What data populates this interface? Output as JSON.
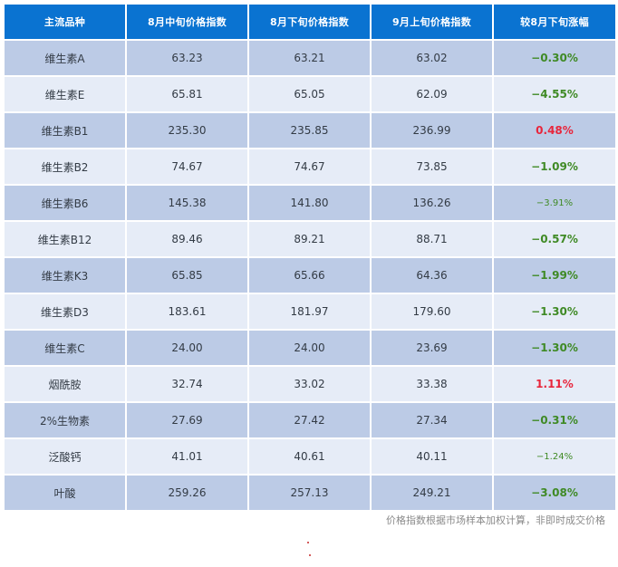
{
  "headers": [
    "主流品种",
    "8月中旬价格指数",
    "8月下旬价格指数",
    "9月上旬价格指数",
    "较8月下旬涨幅"
  ],
  "rows": [
    {
      "name": "维生素A",
      "mid_aug": "63.23",
      "late_aug": "63.21",
      "early_sep": "63.02",
      "change": "−0.30%",
      "dir": "down"
    },
    {
      "name": "维生素E",
      "mid_aug": "65.81",
      "late_aug": "65.05",
      "early_sep": "62.09",
      "change": "−4.55%",
      "dir": "down"
    },
    {
      "name": "维生素B1",
      "mid_aug": "235.30",
      "late_aug": "235.85",
      "early_sep": "236.99",
      "change": "0.48%",
      "dir": "up"
    },
    {
      "name": "维生素B2",
      "mid_aug": "74.67",
      "late_aug": "74.67",
      "early_sep": "73.85",
      "change": "−1.09%",
      "dir": "down"
    },
    {
      "name": "维生素B6",
      "mid_aug": "145.38",
      "late_aug": "141.80",
      "early_sep": "136.26",
      "change": "−3.91%",
      "dir": "down"
    },
    {
      "name": "维生素B12",
      "mid_aug": "89.46",
      "late_aug": "89.21",
      "early_sep": "88.71",
      "change": "−0.57%",
      "dir": "down"
    },
    {
      "name": "维生素K3",
      "mid_aug": "65.85",
      "late_aug": "65.66",
      "early_sep": "64.36",
      "change": "−1.99%",
      "dir": "down"
    },
    {
      "name": "维生素D3",
      "mid_aug": "183.61",
      "late_aug": "181.97",
      "early_sep": "179.60",
      "change": "−1.30%",
      "dir": "down"
    },
    {
      "name": "维生素C",
      "mid_aug": "24.00",
      "late_aug": "24.00",
      "early_sep": "23.69",
      "change": "−1.30%",
      "dir": "down"
    },
    {
      "name": "烟酰胺",
      "mid_aug": "32.74",
      "late_aug": "33.02",
      "early_sep": "33.38",
      "change": "1.11%",
      "dir": "up"
    },
    {
      "name": "2%生物素",
      "mid_aug": "27.69",
      "late_aug": "27.42",
      "early_sep": "27.34",
      "change": "−0.31%",
      "dir": "down"
    },
    {
      "name": "泛酸钙",
      "mid_aug": "41.01",
      "late_aug": "40.61",
      "early_sep": "40.11",
      "change": "−1.24%",
      "dir": "down"
    },
    {
      "name": "叶酸",
      "mid_aug": "259.26",
      "late_aug": "257.13",
      "early_sep": "249.21",
      "change": "−3.08%",
      "dir": "down"
    }
  ],
  "footnote": "价格指数根据市场样本加权计算，非即时成交价格",
  "colors": {
    "header_bg": "#0a73d1",
    "row_odd": "#bccbe6",
    "row_even": "#e6ecf7",
    "down": "#3f8a25",
    "up": "#e8263c"
  }
}
